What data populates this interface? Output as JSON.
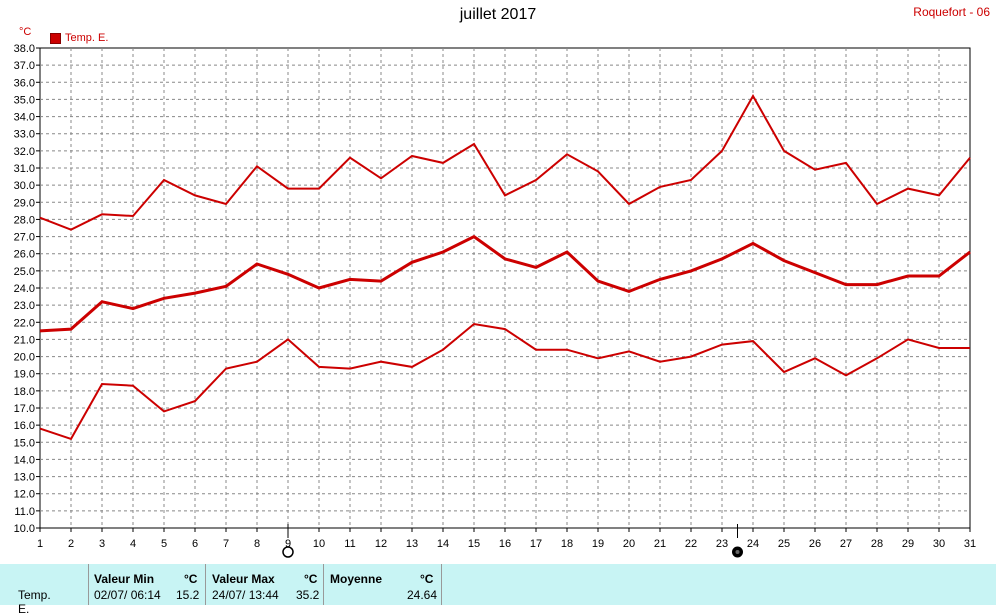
{
  "header": {
    "title": "juillet 2017",
    "station": "Roquefort - 06",
    "unit": "°C",
    "legend_label": "Temp. E."
  },
  "chart_data": {
    "type": "line",
    "title": "juillet 2017",
    "xlabel": "",
    "ylabel": "°C",
    "x": [
      1,
      2,
      3,
      4,
      5,
      6,
      7,
      8,
      9,
      10,
      11,
      12,
      13,
      14,
      15,
      16,
      17,
      18,
      19,
      20,
      21,
      22,
      23,
      24,
      25,
      26,
      27,
      28,
      29,
      30,
      31
    ],
    "xlim": [
      1,
      31
    ],
    "ylim": [
      10,
      38
    ],
    "ytick_step": 1,
    "grid": true,
    "legend_position": "top-left",
    "series": [
      {
        "name": "Temp. E.",
        "role": "max",
        "color": "#cc0000",
        "values": [
          28.1,
          27.4,
          28.3,
          28.2,
          30.3,
          29.4,
          28.9,
          31.1,
          29.8,
          29.8,
          31.6,
          30.4,
          31.7,
          31.3,
          32.4,
          29.4,
          30.3,
          31.8,
          30.8,
          28.9,
          29.9,
          30.3,
          32.0,
          35.2,
          32.0,
          30.9,
          31.3,
          28.9,
          29.8,
          29.4,
          31.6
        ]
      },
      {
        "name": "",
        "role": "mean",
        "color": "#cc0000",
        "values": [
          21.5,
          21.6,
          23.2,
          22.8,
          23.4,
          23.7,
          24.1,
          25.4,
          24.8,
          24.0,
          24.5,
          24.4,
          25.5,
          26.1,
          27.0,
          25.7,
          25.2,
          26.1,
          24.4,
          23.8,
          24.5,
          25.0,
          25.7,
          26.6,
          25.6,
          24.9,
          24.2,
          24.2,
          24.7,
          24.7,
          26.1
        ]
      },
      {
        "name": "",
        "role": "min",
        "color": "#cc0000",
        "values": [
          15.8,
          15.2,
          18.4,
          18.3,
          16.8,
          17.4,
          19.3,
          19.7,
          21.0,
          19.4,
          19.3,
          19.7,
          19.4,
          20.4,
          21.9,
          21.6,
          20.4,
          20.4,
          19.9,
          20.3,
          19.7,
          20.0,
          20.7,
          20.9,
          19.1,
          19.9,
          18.9,
          19.9,
          21.0,
          20.5,
          20.5
        ]
      }
    ],
    "moon_phases": [
      {
        "day": 9,
        "phase": "full-moon"
      },
      {
        "day": 23.5,
        "phase": "new-moon"
      }
    ]
  },
  "summary": {
    "row_label": "Temp. E.",
    "min": {
      "header": "Valeur Min",
      "unit": "°C",
      "date": "02/07/ 06:14",
      "value": "15.2"
    },
    "max": {
      "header": "Valeur Max",
      "unit": "°C",
      "date": "24/07/ 13:44",
      "value": "35.2"
    },
    "mean": {
      "header": "Moyenne",
      "unit": "°C",
      "value": "24.64"
    }
  }
}
